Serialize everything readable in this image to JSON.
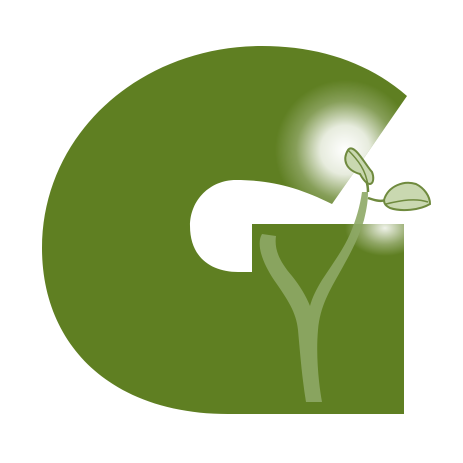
{
  "logo": {
    "letter": "G",
    "description_name": "g-sprout-logo",
    "colors": {
      "background": "#ffffff",
      "letter_green": "#5f7f22",
      "sprout_fill": "#8ea866",
      "leaf_fill": "#c9d8b0",
      "leaf_stroke": "#6f8a3e",
      "glow": "#ffffff"
    }
  }
}
